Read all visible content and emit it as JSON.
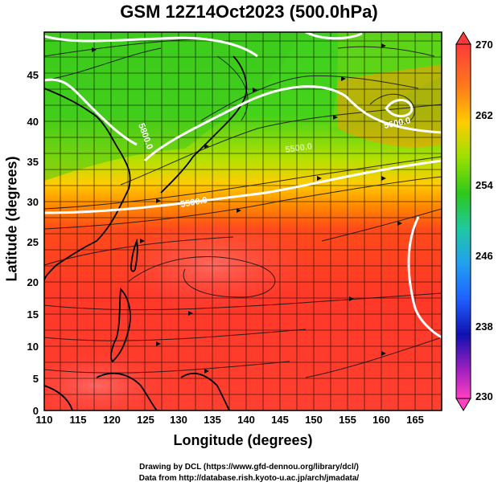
{
  "title": "GSM 12Z14Oct2023 (500.0hPa)",
  "axes": {
    "xlabel": "Longitude (degrees)",
    "ylabel": "Latitude  (degrees)",
    "xticks": [
      "110",
      "115",
      "120",
      "125",
      "130",
      "135",
      "140",
      "145",
      "150",
      "155",
      "160",
      "165"
    ],
    "yticks": [
      "0",
      "5",
      "10",
      "15",
      "20",
      "25",
      "30",
      "35",
      "40",
      "45"
    ]
  },
  "colorbar": {
    "ticks": [
      "270",
      "262",
      "254",
      "246",
      "238",
      "230"
    ]
  },
  "contours": {
    "labels": [
      "5500.0",
      "5600.0",
      "5800.0",
      "5500.0"
    ]
  },
  "credits": {
    "line1": "Drawing by DCL (https://www.gfd-dennou.org/library/dcl/)",
    "line2": "Data from http://database.rish.kyoto-u.ac.jp/arch/jmadata/"
  }
}
